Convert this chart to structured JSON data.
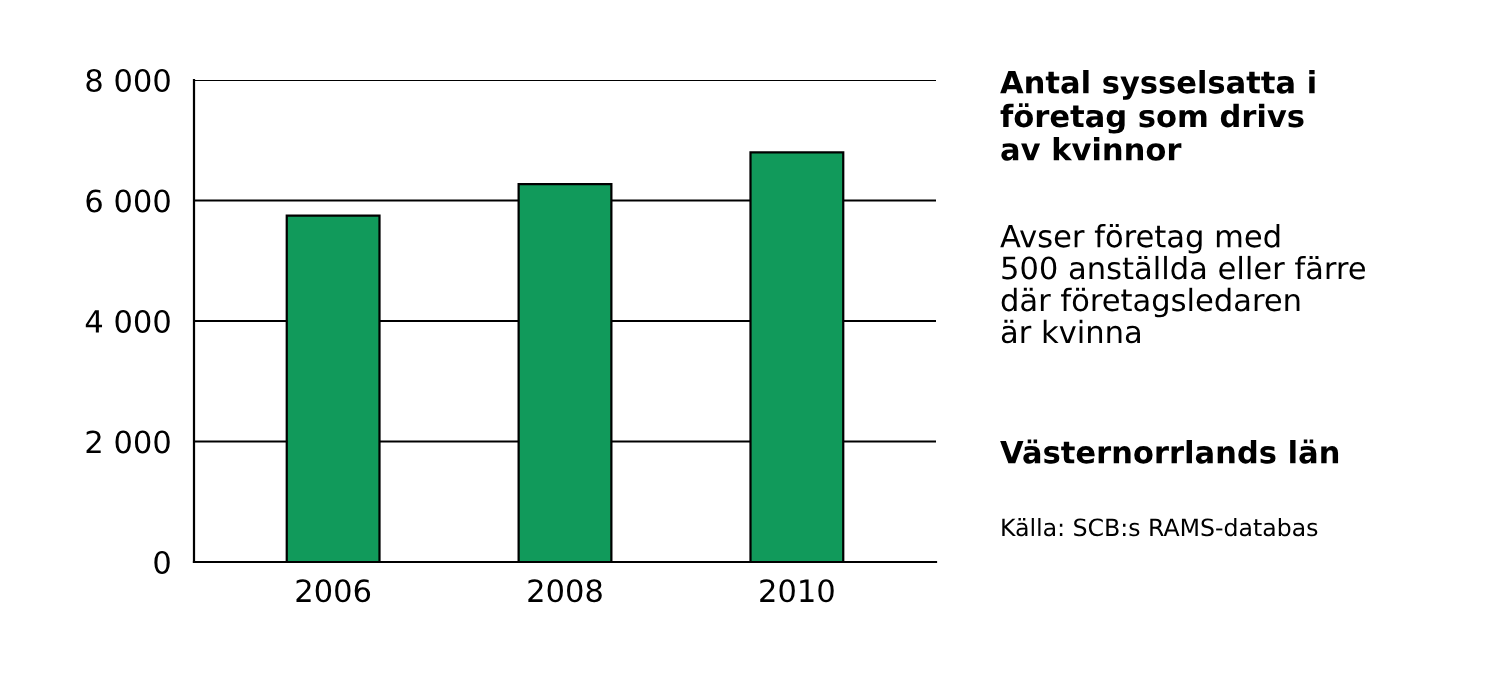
{
  "chart_data": {
    "type": "bar",
    "title": "Antal sysselsatta i\nföretag som drivs\nav kvinnor",
    "subtitle": "Avser företag med\n500 anställda eller färre\ndär företagsledaren\när kvinna",
    "categories": [
      "2006",
      "2008",
      "2010"
    ],
    "values": [
      5750,
      6270,
      6800
    ],
    "color": "#119a5b",
    "ylim": [
      0,
      8000
    ],
    "yticks": [
      {
        "value": 0,
        "label": "0"
      },
      {
        "value": 2000,
        "label": "2 000"
      },
      {
        "value": 4000,
        "label": "4 000"
      },
      {
        "value": 6000,
        "label": "6 000"
      },
      {
        "value": 8000,
        "label": "8 000"
      }
    ],
    "grid": "y",
    "legend": false,
    "annotations": [
      "Västernorrlands län",
      "Källa: SCB:s RAMS-databas"
    ]
  }
}
